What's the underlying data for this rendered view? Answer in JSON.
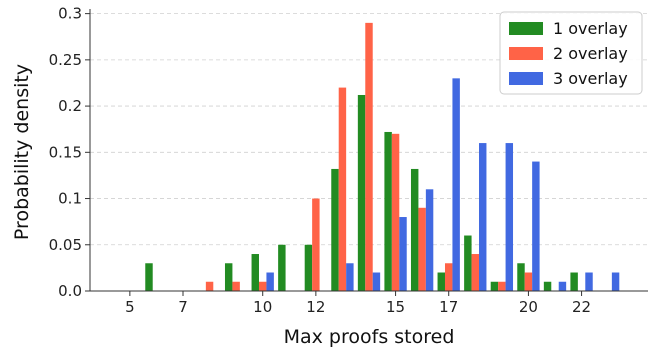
{
  "chart_data": {
    "type": "bar",
    "xlabel": "Max proofs stored",
    "ylabel": "Probability density",
    "xlim": [
      3.5,
      24.5
    ],
    "ylim": [
      0,
      0.305
    ],
    "xticks": [
      5,
      7,
      10,
      12,
      15,
      17,
      20,
      22
    ],
    "yticks": [
      0.0,
      0.05,
      0.1,
      0.15,
      0.2,
      0.25,
      0.3
    ],
    "ytick_labels": [
      "0.0",
      "0.05",
      "0.1",
      "0.15",
      "0.2",
      "0.25",
      "0.3"
    ],
    "grid": "y-dashed",
    "legend_position": "top-right",
    "series": [
      {
        "name": "1 overlay",
        "color": "#228b22",
        "points": [
          {
            "x": 6,
            "y": 0.03
          },
          {
            "x": 9,
            "y": 0.03
          },
          {
            "x": 10,
            "y": 0.04
          },
          {
            "x": 11,
            "y": 0.05
          },
          {
            "x": 12,
            "y": 0.05
          },
          {
            "x": 13,
            "y": 0.132
          },
          {
            "x": 14,
            "y": 0.212
          },
          {
            "x": 15,
            "y": 0.172
          },
          {
            "x": 16,
            "y": 0.132
          },
          {
            "x": 17,
            "y": 0.02
          },
          {
            "x": 18,
            "y": 0.06
          },
          {
            "x": 19,
            "y": 0.01
          },
          {
            "x": 20,
            "y": 0.03
          },
          {
            "x": 21,
            "y": 0.01
          },
          {
            "x": 22,
            "y": 0.02
          }
        ]
      },
      {
        "name": "2 overlay",
        "color": "#ff6347",
        "points": [
          {
            "x": 8,
            "y": 0.01
          },
          {
            "x": 9,
            "y": 0.01
          },
          {
            "x": 10,
            "y": 0.01
          },
          {
            "x": 12,
            "y": 0.1
          },
          {
            "x": 13,
            "y": 0.22
          },
          {
            "x": 14,
            "y": 0.29
          },
          {
            "x": 15,
            "y": 0.17
          },
          {
            "x": 16,
            "y": 0.09
          },
          {
            "x": 17,
            "y": 0.03
          },
          {
            "x": 18,
            "y": 0.04
          },
          {
            "x": 19,
            "y": 0.01
          },
          {
            "x": 20,
            "y": 0.02
          }
        ]
      },
      {
        "name": "3 overlay",
        "color": "#4169e1",
        "points": [
          {
            "x": 10,
            "y": 0.02
          },
          {
            "x": 13,
            "y": 0.03
          },
          {
            "x": 14,
            "y": 0.02
          },
          {
            "x": 15,
            "y": 0.08
          },
          {
            "x": 16,
            "y": 0.11
          },
          {
            "x": 17,
            "y": 0.23
          },
          {
            "x": 18,
            "y": 0.16
          },
          {
            "x": 19,
            "y": 0.16
          },
          {
            "x": 20,
            "y": 0.14
          },
          {
            "x": 21,
            "y": 0.01
          },
          {
            "x": 22,
            "y": 0.02
          },
          {
            "x": 23,
            "y": 0.02
          }
        ]
      }
    ]
  }
}
